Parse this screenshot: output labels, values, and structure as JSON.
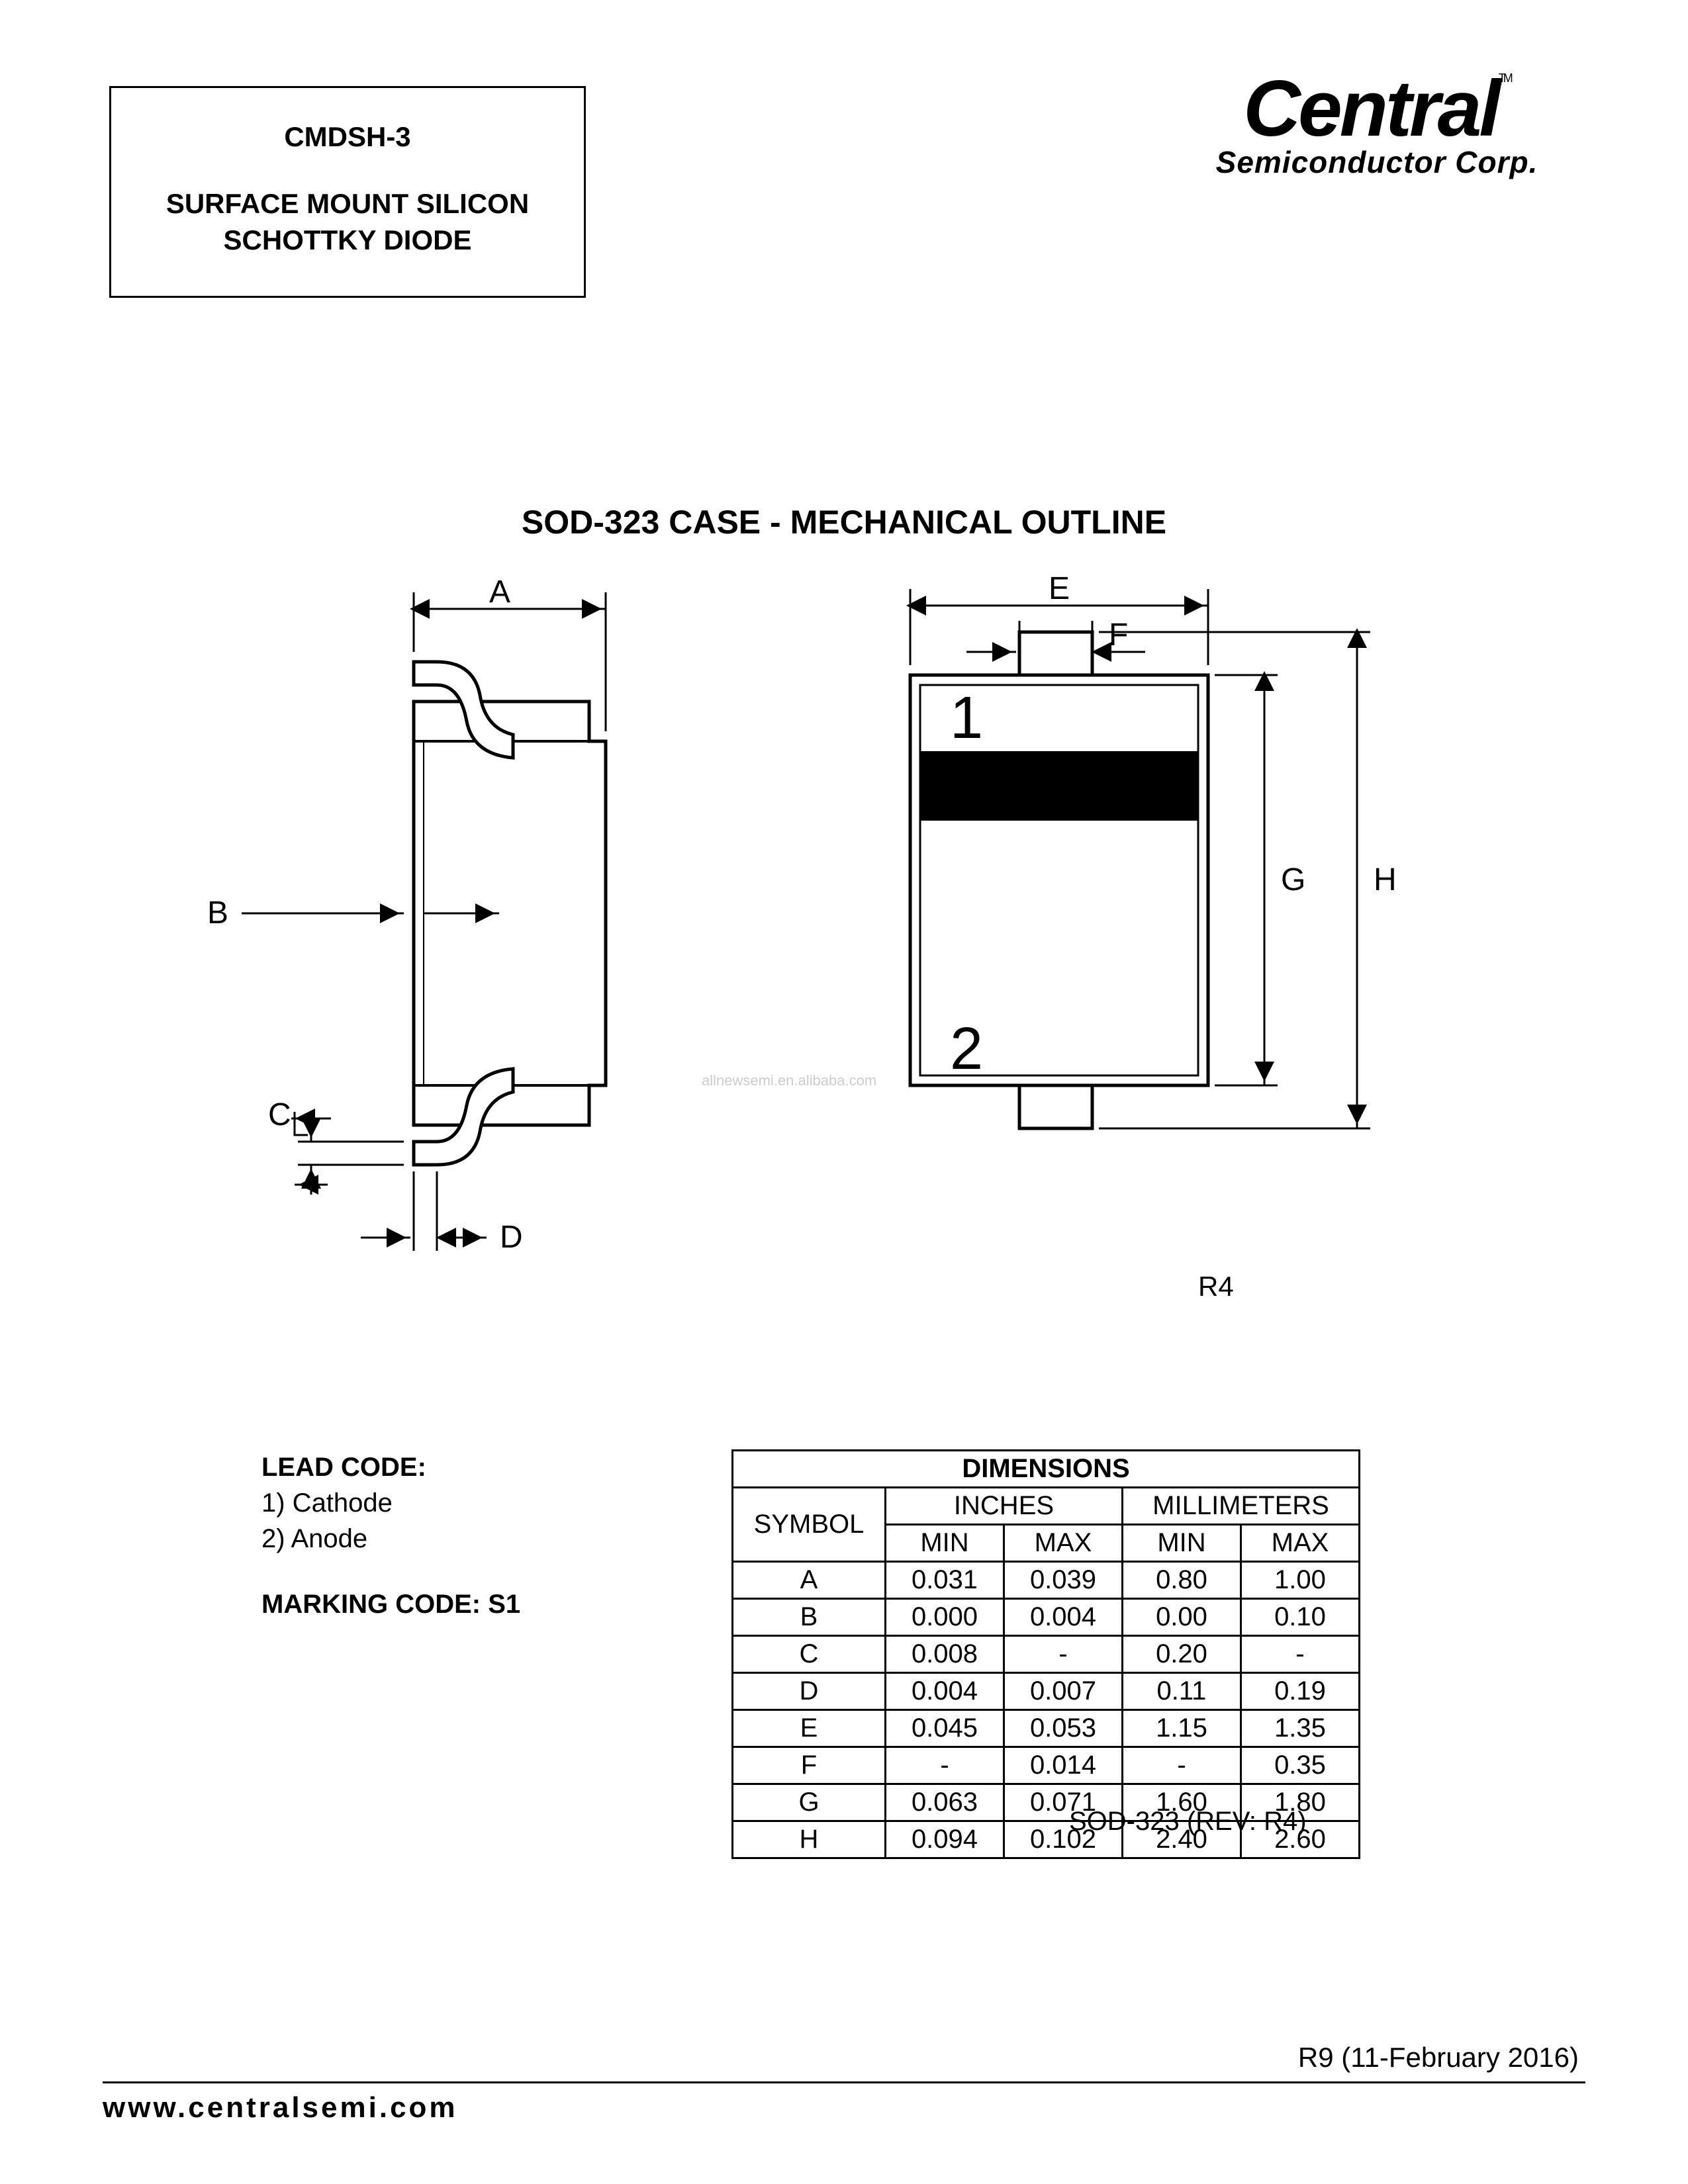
{
  "header": {
    "part_number": "CMDSH-3",
    "desc_line1": "SURFACE MOUNT SILICON",
    "desc_line2": "SCHOTTKY DIODE"
  },
  "logo": {
    "main": "Central",
    "sub": "Semiconductor Corp.",
    "tm": "TM"
  },
  "section_title": "SOD-323 CASE - MECHANICAL OUTLINE",
  "diagram": {
    "labels": {
      "A": "A",
      "B": "B",
      "C": "C",
      "D": "D",
      "E": "E",
      "F": "F",
      "G": "G",
      "H": "H",
      "pin1": "1",
      "pin2": "2"
    },
    "stroke_color": "#000000",
    "fill_white": "#ffffff",
    "fill_black": "#000000",
    "line_width_main": 3,
    "line_width_dim": 2.5,
    "font_size_labels": 48,
    "font_size_pins": 80
  },
  "rev_label": "R4",
  "lead_code": {
    "title": "LEAD CODE:",
    "item1": "1) Cathode",
    "item2": "2) Anode"
  },
  "marking_code": "MARKING CODE: S1",
  "dimensions_table": {
    "title": "DIMENSIONS",
    "inches_label": "INCHES",
    "mm_label": "MILLIMETERS",
    "symbol_label": "SYMBOL",
    "min_label": "MIN",
    "max_label": "MAX",
    "rows": [
      {
        "sym": "A",
        "in_min": "0.031",
        "in_max": "0.039",
        "mm_min": "0.80",
        "mm_max": "1.00"
      },
      {
        "sym": "B",
        "in_min": "0.000",
        "in_max": "0.004",
        "mm_min": "0.00",
        "mm_max": "0.10"
      },
      {
        "sym": "C",
        "in_min": "0.008",
        "in_max": "-",
        "mm_min": "0.20",
        "mm_max": "-"
      },
      {
        "sym": "D",
        "in_min": "0.004",
        "in_max": "0.007",
        "mm_min": "0.11",
        "mm_max": "0.19"
      },
      {
        "sym": "E",
        "in_min": "0.045",
        "in_max": "0.053",
        "mm_min": "1.15",
        "mm_max": "1.35"
      },
      {
        "sym": "F",
        "in_min": "-",
        "in_max": "0.014",
        "mm_min": "-",
        "mm_max": "0.35"
      },
      {
        "sym": "G",
        "in_min": "0.063",
        "in_max": "0.071",
        "mm_min": "1.60",
        "mm_max": "1.80"
      },
      {
        "sym": "H",
        "in_min": "0.094",
        "in_max": "0.102",
        "mm_min": "2.40",
        "mm_max": "2.60"
      }
    ]
  },
  "table_rev": "SOD-323 (REV: R4)",
  "footer": {
    "rev": "R9 (11-February 2016)",
    "url": "www.centralsemi.com"
  },
  "watermark": "allnewsemi.en.alibaba.com"
}
